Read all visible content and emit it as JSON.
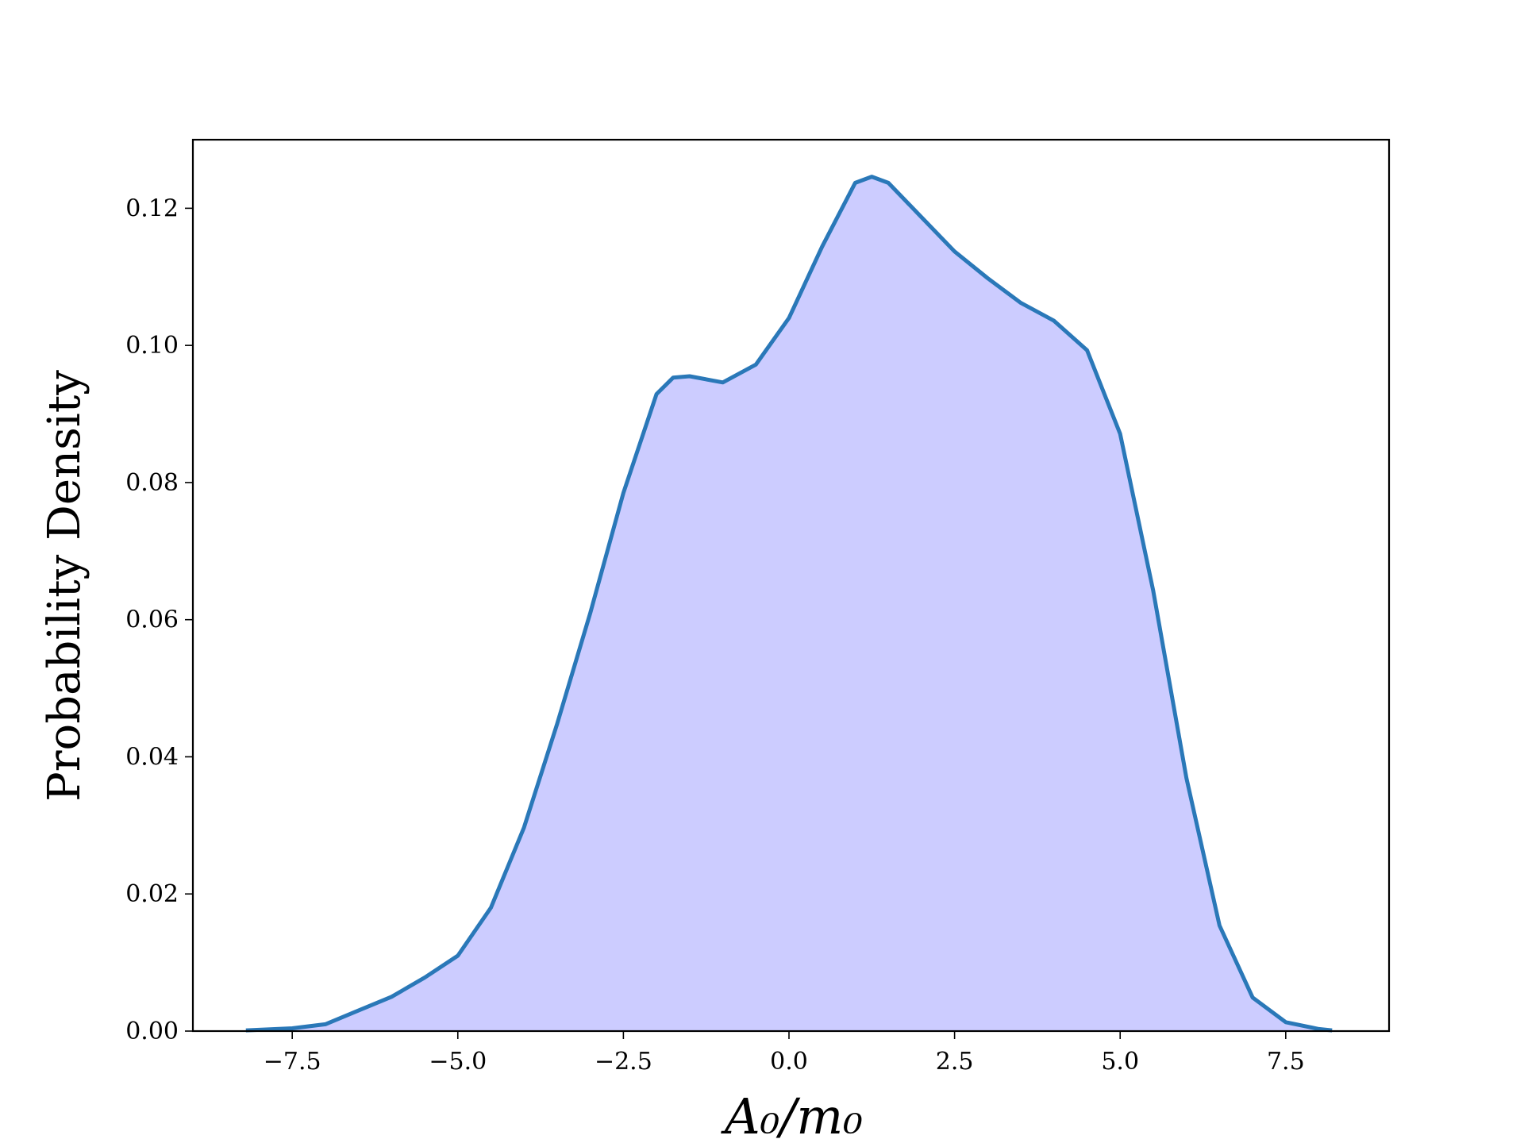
{
  "chart_data": {
    "type": "area",
    "xlabel": "A₀/m₀",
    "ylabel": "Probability Density",
    "x": [
      -8.2,
      -7.5,
      -7.0,
      -6.5,
      -6.0,
      -5.5,
      -5.0,
      -4.5,
      -4.0,
      -3.5,
      -3.0,
      -2.5,
      -2.0,
      -1.75,
      -1.5,
      -1.0,
      -0.5,
      0.0,
      0.5,
      1.0,
      1.25,
      1.5,
      2.0,
      2.5,
      3.0,
      3.5,
      4.0,
      4.5,
      5.0,
      5.5,
      6.0,
      6.5,
      7.0,
      7.5,
      8.0,
      8.2
    ],
    "series": [
      {
        "values": [
          0.0001,
          0.0004,
          0.001,
          0.003,
          0.005,
          0.0078,
          0.011,
          0.018,
          0.0297,
          0.0448,
          0.061,
          0.0785,
          0.0929,
          0.0953,
          0.0955,
          0.0946,
          0.0972,
          0.104,
          0.1144,
          0.1237,
          0.1246,
          0.1237,
          0.1187,
          0.1137,
          0.1098,
          0.1062,
          0.1036,
          0.0993,
          0.0871,
          0.0642,
          0.0369,
          0.0154,
          0.0049,
          0.0013,
          0.0003,
          0.0001
        ],
        "color": "#2a78b8",
        "fill_color": "#ccccff"
      }
    ],
    "xlim": [
      -9.0,
      9.06
    ],
    "ylim": [
      0,
      0.13
    ],
    "xticks": [
      {
        "value": -7.5,
        "label": "−7.5"
      },
      {
        "value": -5,
        "label": "−5.0"
      },
      {
        "value": -2.5,
        "label": "−2.5"
      },
      {
        "value": 0,
        "label": "0.0"
      },
      2.5,
      {
        "value": 5,
        "label": "5.0"
      },
      7.5
    ],
    "yticks": [
      {
        "value": 0,
        "label": "0.00"
      },
      {
        "value": 0.02,
        "label": "0.02"
      },
      {
        "value": 0.04,
        "label": "0.04"
      },
      {
        "value": 0.06,
        "label": "0.06"
      },
      {
        "value": 0.08,
        "label": "0.08"
      },
      {
        "value": 0.1,
        "label": "0.10"
      },
      {
        "value": 0.12,
        "label": "0.12"
      }
    ],
    "grid": false
  }
}
